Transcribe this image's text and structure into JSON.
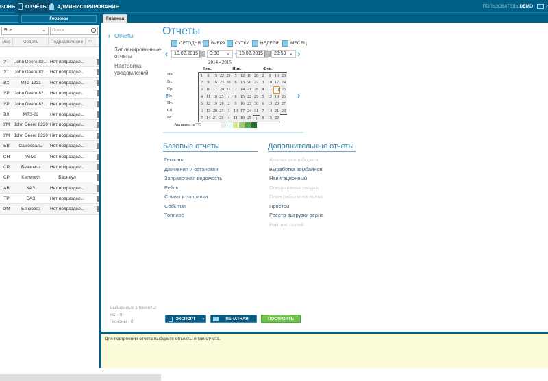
{
  "topbar": {
    "nav": [
      {
        "label": "ГЕОЗОНЫ",
        "icon": "map-icon"
      },
      {
        "label": "ОТЧЁТЫ",
        "icon": "report-icon",
        "active": true
      },
      {
        "label": "АДМИНИСТРИРОВАНИЕ",
        "icon": "user-icon"
      }
    ],
    "user_label": "ПОЛЬЗОВАТЕЛЬ:",
    "user_name": "DEMO",
    "icons": [
      "mail-icon",
      "exit-icon"
    ]
  },
  "left": {
    "tabs": [
      "",
      "Геозоны"
    ],
    "filter_value": "Все",
    "search_placeholder": "Поиск",
    "columns": [
      "мер",
      "Модель",
      "Подразделение"
    ],
    "rows": [
      [
        "УТ",
        "John Deere 82...",
        "Нет подраздел..."
      ],
      [
        "УТ",
        "John Deere 82...",
        "Нет подраздел..."
      ],
      [
        "ВХ",
        "МТЗ 1221",
        "Нет подраздел..."
      ],
      [
        "УР",
        "John Deere 82...",
        "Нет подраздел..."
      ],
      [
        "УР",
        "John Deere 82...",
        "Нет подраздел..."
      ],
      [
        "ВХ",
        "МТЗ-82",
        "Нет подраздел..."
      ],
      [
        "УМ",
        "John Deere 8220",
        "Нет подраздел..."
      ],
      [
        "УМ",
        "John Deere 8220",
        "Нет подраздел..."
      ],
      [
        "ЕВ",
        "Самосвалы",
        "Нет подраздел..."
      ],
      [
        "СН",
        "Volvo",
        "Нет подраздел..."
      ],
      [
        "СР",
        "Бензовоз",
        "Нет подраздел..."
      ],
      [
        "СР",
        "Kenworth",
        "Барнаул"
      ],
      [
        "АВ",
        "УАЗ",
        "Нет подраздел..."
      ],
      [
        "ТР",
        "ВАЗ",
        "Нет подраздел..."
      ],
      [
        "ОМ",
        "Бензовоз",
        "Нет подраздел..."
      ]
    ]
  },
  "main": {
    "tab": "Главная",
    "side": [
      "Отчеты",
      "Запланированные отчеты",
      "Настройка уведомлений"
    ],
    "title": "Отчеты",
    "periods": [
      "СЕГОДНЯ",
      "ВЧЕРА",
      "СУТКИ",
      "НЕДЕЛЯ",
      "МЕСЯЦ"
    ],
    "date_from": "18.02.2015",
    "time_from": "0:00",
    "date_to": "18.02.2015",
    "time_to": "23:59",
    "dash": "-",
    "calendar": {
      "years": "2014 - 2015",
      "months": [
        "Дек.",
        "Янв.",
        "Фев."
      ],
      "weekdays": [
        "Пн.",
        "Вт.",
        "Ср.",
        "Чт.",
        "Пт.",
        "Сб.",
        "Вс."
      ],
      "rows": [
        [
          1,
          8,
          15,
          22,
          29,
          5,
          12,
          19,
          26,
          2,
          9,
          16,
          23
        ],
        [
          2,
          9,
          16,
          23,
          30,
          6,
          13,
          20,
          27,
          3,
          10,
          17,
          24
        ],
        [
          3,
          10,
          17,
          24,
          31,
          7,
          14,
          21,
          28,
          4,
          11,
          18,
          25
        ],
        [
          4,
          11,
          18,
          25,
          1,
          8,
          15,
          22,
          29,
          5,
          12,
          19,
          26
        ],
        [
          5,
          12,
          19,
          26,
          2,
          9,
          16,
          23,
          30,
          6,
          13,
          20,
          27
        ],
        [
          6,
          13,
          20,
          27,
          3,
          10,
          17,
          24,
          31,
          7,
          14,
          21,
          28
        ],
        [
          7,
          14,
          21,
          28,
          4,
          11,
          18,
          25,
          1,
          8,
          15,
          22,
          null
        ]
      ],
      "selected": "18.02.2015",
      "activity_label": "Активность ТС",
      "activity_colors": [
        "#ececec",
        "#e6fafa",
        "#d6e68f",
        "#98cf6a",
        "#4aa84a",
        "#1e6e2a"
      ]
    },
    "basic_title": "Базовые отчеты",
    "basic": [
      "Геозоны",
      "Движения и остановки",
      "Заправочная ведомость",
      "Рейсы",
      "Сливы и заправки",
      "События",
      "Топливо"
    ],
    "extra_title": "Дополнительные отчеты",
    "extra": [
      {
        "label": "Анализ севооборота",
        "enabled": false
      },
      {
        "label": "Выработка комбайнов",
        "enabled": true
      },
      {
        "label": "Навигационный",
        "enabled": true
      },
      {
        "label": "Оперативная сводка",
        "enabled": false
      },
      {
        "label": "План работы на полях",
        "enabled": false
      },
      {
        "label": "Простои",
        "enabled": true
      },
      {
        "label": "Реестр выгрузки зерна",
        "enabled": true
      },
      {
        "label": "Рейтинг полей",
        "enabled": false
      }
    ],
    "selected_title": "Выбранные элементы:",
    "selected_vehicles": "ТС - 0",
    "selected_geozones": "Геозоны - 0",
    "export": "ЭКСПОРТ",
    "print": "ПЕЧАТНАЯ ФОРМА",
    "build": "ПОСТРОИТЬ",
    "colors": {
      "accent": "#29a3dd",
      "build": "#6cc24a",
      "dark": "#005f86"
    }
  },
  "bottom": {
    "message": "Для построения отчета выберите объекты и тип отчета."
  }
}
